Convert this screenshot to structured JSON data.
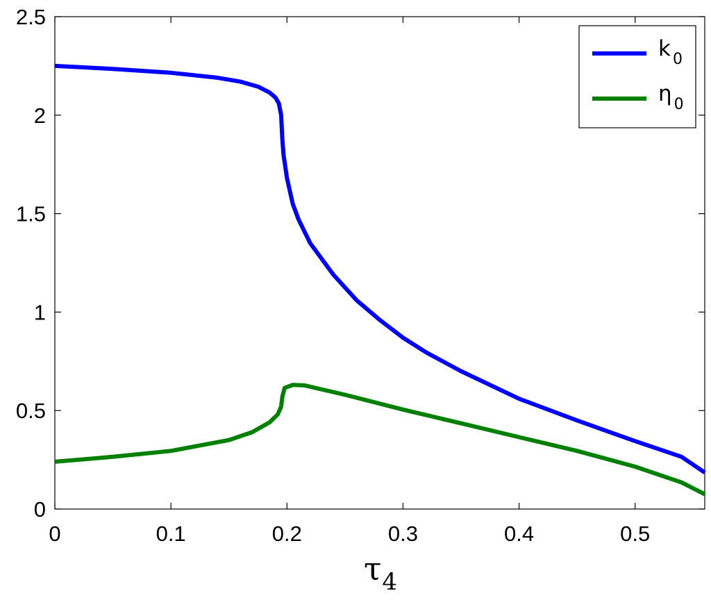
{
  "chart_data": {
    "type": "line",
    "title": "",
    "xlabel": "τ",
    "xlabel_sub": "4",
    "ylabel": "",
    "xlim": [
      0,
      0.56
    ],
    "ylim": [
      0,
      2.5
    ],
    "x_ticks": [
      "0",
      "0.1",
      "0.2",
      "0.3",
      "0.4",
      "0.5"
    ],
    "y_ticks": [
      "0",
      "0.5",
      "1",
      "1.5",
      "2",
      "2.5"
    ],
    "grid": false,
    "legend_position": "top-right",
    "series": [
      {
        "name": "k",
        "name_sub": "0",
        "color": "#0000ff",
        "points": [
          [
            0,
            2.25
          ],
          [
            0.05,
            2.235
          ],
          [
            0.1,
            2.215
          ],
          [
            0.14,
            2.19
          ],
          [
            0.16,
            2.17
          ],
          [
            0.175,
            2.145
          ],
          [
            0.185,
            2.115
          ],
          [
            0.19,
            2.09
          ],
          [
            0.193,
            2.06
          ],
          [
            0.195,
            2.0
          ],
          [
            0.196,
            1.88
          ],
          [
            0.197,
            1.8
          ],
          [
            0.2,
            1.68
          ],
          [
            0.205,
            1.55
          ],
          [
            0.21,
            1.47
          ],
          [
            0.22,
            1.35
          ],
          [
            0.24,
            1.19
          ],
          [
            0.26,
            1.06
          ],
          [
            0.28,
            0.96
          ],
          [
            0.3,
            0.87
          ],
          [
            0.32,
            0.795
          ],
          [
            0.35,
            0.7
          ],
          [
            0.4,
            0.56
          ],
          [
            0.45,
            0.45
          ],
          [
            0.5,
            0.345
          ],
          [
            0.54,
            0.265
          ],
          [
            0.56,
            0.185
          ]
        ]
      },
      {
        "name": "η",
        "name_sub": "0",
        "color": "#008000",
        "points": [
          [
            0,
            0.24
          ],
          [
            0.05,
            0.265
          ],
          [
            0.1,
            0.295
          ],
          [
            0.15,
            0.35
          ],
          [
            0.17,
            0.39
          ],
          [
            0.185,
            0.44
          ],
          [
            0.192,
            0.48
          ],
          [
            0.195,
            0.52
          ],
          [
            0.196,
            0.57
          ],
          [
            0.198,
            0.615
          ],
          [
            0.205,
            0.63
          ],
          [
            0.215,
            0.628
          ],
          [
            0.25,
            0.58
          ],
          [
            0.3,
            0.505
          ],
          [
            0.35,
            0.435
          ],
          [
            0.4,
            0.365
          ],
          [
            0.45,
            0.295
          ],
          [
            0.5,
            0.215
          ],
          [
            0.54,
            0.135
          ],
          [
            0.56,
            0.075
          ]
        ]
      }
    ]
  }
}
